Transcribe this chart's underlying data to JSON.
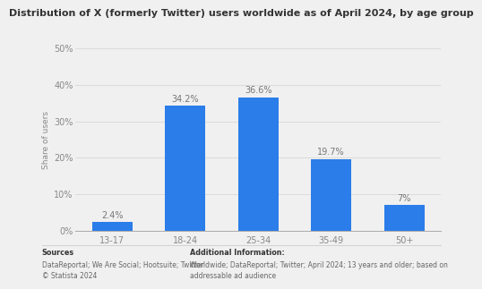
{
  "title": "Distribution of X (formerly Twitter) users worldwide as of April 2024, by age group",
  "categories": [
    "13-17",
    "18-24",
    "25-34",
    "35-49",
    "50+"
  ],
  "values": [
    2.4,
    34.2,
    36.6,
    19.7,
    7.0
  ],
  "labels": [
    "2.4%",
    "34.2%",
    "36.6%",
    "19.7%",
    "7%"
  ],
  "bar_color": "#2B7DE9",
  "ylabel": "Share of users",
  "ylim": [
    0,
    50
  ],
  "yticks": [
    0,
    10,
    20,
    30,
    40,
    50
  ],
  "ytick_labels": [
    "0%",
    "10%",
    "20%",
    "30%",
    "40%",
    "50%"
  ],
  "background_color": "#f0f0f0",
  "plot_bg_color": "#f0f0f0",
  "title_fontsize": 8.0,
  "label_fontsize": 7.0,
  "tick_fontsize": 7.0,
  "ylabel_fontsize": 6.5,
  "sources_bold": "Sources",
  "sources_text": "DataReportal; We Are Social; Hootsuite; Twitter\n© Statista 2024",
  "additional_bold": "Additional Information:",
  "additional_text": "Worldwide; DataReportal; Twitter; April 2024; 13 years and older; based on addressable ad audience"
}
